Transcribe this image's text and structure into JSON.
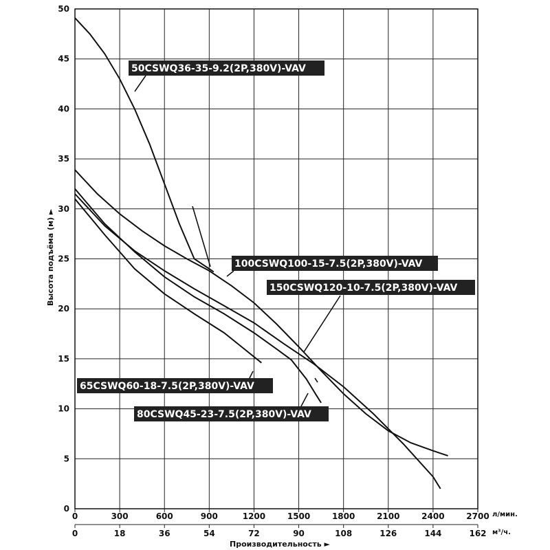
{
  "chart_data": {
    "type": "line",
    "title": "",
    "ylabel": "Высота подъёма (м) ►",
    "xlabel": "Производительность ►",
    "x_unit_primary": "л/мин.",
    "x_unit_secondary": "м³/ч.",
    "xlim": [
      0,
      2700
    ],
    "ylim": [
      0,
      50
    ],
    "grid": true,
    "x_ticks": [
      "0",
      "300",
      "600",
      "900",
      "1200",
      "1500",
      "1800",
      "2100",
      "2400",
      "2700"
    ],
    "x2_ticks": [
      "0",
      "18",
      "36",
      "54",
      "72",
      "90",
      "108",
      "126",
      "144",
      "162"
    ],
    "y_ticks": [
      "0",
      "5",
      "10",
      "15",
      "20",
      "25",
      "30",
      "35",
      "40",
      "45",
      "50"
    ],
    "series": [
      {
        "name": "50CSWQ36-35-9.2(2P,380V)-VAV",
        "x": [
          0,
          100,
          200,
          300,
          400,
          500,
          600,
          700,
          800,
          900,
          930
        ],
        "y": [
          49.1,
          47.5,
          45.5,
          43.0,
          40.0,
          36.5,
          32.5,
          28.5,
          25.0,
          24.0,
          23.7
        ]
      },
      {
        "name": "100CSWQ100-15-7.5(2P,380V)-VAV",
        "x": [
          0,
          150,
          300,
          450,
          600,
          750,
          900,
          1050,
          1200,
          1350,
          1500,
          1650,
          1800,
          1950,
          2100,
          2250,
          2400,
          2500
        ],
        "y": [
          33.9,
          31.5,
          29.5,
          27.8,
          26.3,
          25.0,
          23.8,
          22.3,
          20.6,
          18.5,
          16.2,
          13.8,
          11.5,
          9.5,
          7.8,
          6.6,
          5.8,
          5.3
        ]
      },
      {
        "name": "150CSWQ120-10-7.5(2P,380V)-VAV",
        "x": [
          0,
          200,
          400,
          600,
          800,
          1000,
          1200,
          1400,
          1600,
          1800,
          2000,
          2200,
          2400,
          2450
        ],
        "y": [
          31.5,
          28.3,
          25.8,
          23.8,
          22.0,
          20.3,
          18.6,
          16.5,
          14.5,
          12.2,
          9.5,
          6.5,
          3.2,
          2.0
        ]
      },
      {
        "name": "65CSWQ60-18-7.5(2P,380V)-VAV",
        "x": [
          0,
          200,
          400,
          600,
          800,
          1000,
          1100,
          1250
        ],
        "y": [
          31.0,
          27.4,
          24.0,
          21.5,
          19.5,
          17.6,
          16.4,
          14.6
        ]
      },
      {
        "name": "80CSWQ45-23-7.5(2P,380V)-VAV",
        "x": [
          0,
          200,
          400,
          600,
          800,
          1000,
          1200,
          1350,
          1450,
          1550,
          1620,
          1650
        ],
        "y": [
          32.0,
          28.5,
          25.7,
          23.2,
          21.2,
          19.5,
          17.6,
          16.0,
          14.9,
          13.0,
          11.3,
          10.6
        ]
      }
    ]
  },
  "labels": {
    "l1": "50CSWQ36-35-9.2(2P,380V)-VAV",
    "l2": "100CSWQ100-15-7.5(2P,380V)-VAV",
    "l3": "150CSWQ120-10-7.5(2P,380V)-VAV",
    "l4": "65CSWQ60-18-7.5(2P,380V)-VAV",
    "l5": "80CSWQ45-23-7.5(2P,380V)-VAV"
  }
}
